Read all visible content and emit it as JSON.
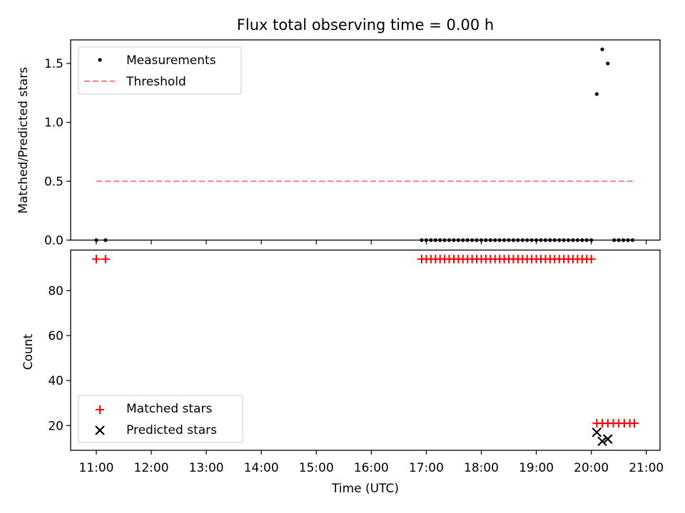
{
  "chart_data": [
    {
      "type": "scatter",
      "title": "Flux total observing time = 0.00 h",
      "xlabel": "",
      "ylabel": "Matched/Predicted stars",
      "xlim": [
        "10:32",
        "21:15"
      ],
      "ylim": [
        0,
        1.7
      ],
      "yticks": [
        0.0,
        0.5,
        1.0,
        1.5
      ],
      "ytick_labels": [
        "0.0",
        "0.5",
        "1.0",
        "1.5"
      ],
      "legend_position": "upper-left",
      "series": [
        {
          "name": "Measurements",
          "style": "dot",
          "color": "#000000",
          "points": [
            [
              "11:00",
              0
            ],
            [
              "11:10",
              0
            ],
            [
              "16:55",
              0
            ],
            [
              "17:00",
              0
            ],
            [
              "17:05",
              0
            ],
            [
              "17:10",
              0
            ],
            [
              "17:15",
              0
            ],
            [
              "17:20",
              0
            ],
            [
              "17:25",
              0
            ],
            [
              "17:30",
              0
            ],
            [
              "17:35",
              0
            ],
            [
              "17:40",
              0
            ],
            [
              "17:45",
              0
            ],
            [
              "17:50",
              0
            ],
            [
              "17:55",
              0
            ],
            [
              "18:00",
              0
            ],
            [
              "18:05",
              0
            ],
            [
              "18:10",
              0
            ],
            [
              "18:15",
              0
            ],
            [
              "18:20",
              0
            ],
            [
              "18:25",
              0
            ],
            [
              "18:30",
              0
            ],
            [
              "18:35",
              0
            ],
            [
              "18:40",
              0
            ],
            [
              "18:45",
              0
            ],
            [
              "18:50",
              0
            ],
            [
              "18:55",
              0
            ],
            [
              "19:00",
              0
            ],
            [
              "19:05",
              0
            ],
            [
              "19:10",
              0
            ],
            [
              "19:15",
              0
            ],
            [
              "19:20",
              0
            ],
            [
              "19:25",
              0
            ],
            [
              "19:30",
              0
            ],
            [
              "19:35",
              0
            ],
            [
              "19:40",
              0
            ],
            [
              "19:45",
              0
            ],
            [
              "19:50",
              0
            ],
            [
              "19:55",
              0
            ],
            [
              "20:00",
              0
            ],
            [
              "20:06",
              1.24
            ],
            [
              "20:12",
              1.62
            ],
            [
              "20:18",
              1.5
            ],
            [
              "20:25",
              0
            ],
            [
              "20:30",
              0
            ],
            [
              "20:35",
              0
            ],
            [
              "20:40",
              0
            ],
            [
              "20:45",
              0
            ]
          ]
        },
        {
          "name": "Threshold",
          "style": "dashed-line",
          "color": "#ff7f7f",
          "points": [
            [
              "11:00",
              0.5
            ],
            [
              "20:45",
              0.5
            ]
          ]
        }
      ]
    },
    {
      "type": "scatter",
      "title": "",
      "xlabel": "Time (UTC)",
      "ylabel": "Count",
      "xlim": [
        "10:32",
        "21:15"
      ],
      "ylim": [
        9,
        98
      ],
      "xticks": [
        "11:00",
        "12:00",
        "13:00",
        "14:00",
        "15:00",
        "16:00",
        "17:00",
        "18:00",
        "19:00",
        "20:00",
        "21:00"
      ],
      "yticks": [
        20,
        40,
        60,
        80
      ],
      "ytick_labels": [
        "20",
        "40",
        "60",
        "80"
      ],
      "legend_position": "lower-left",
      "series": [
        {
          "name": "Matched stars",
          "style": "plus",
          "color": "#ff0000",
          "points": [
            [
              "11:00",
              94
            ],
            [
              "11:10",
              94
            ],
            [
              "16:55",
              94
            ],
            [
              "17:00",
              94
            ],
            [
              "17:05",
              94
            ],
            [
              "17:10",
              94
            ],
            [
              "17:15",
              94
            ],
            [
              "17:20",
              94
            ],
            [
              "17:25",
              94
            ],
            [
              "17:30",
              94
            ],
            [
              "17:35",
              94
            ],
            [
              "17:40",
              94
            ],
            [
              "17:45",
              94
            ],
            [
              "17:50",
              94
            ],
            [
              "17:55",
              94
            ],
            [
              "18:00",
              94
            ],
            [
              "18:05",
              94
            ],
            [
              "18:10",
              94
            ],
            [
              "18:15",
              94
            ],
            [
              "18:20",
              94
            ],
            [
              "18:25",
              94
            ],
            [
              "18:30",
              94
            ],
            [
              "18:35",
              94
            ],
            [
              "18:40",
              94
            ],
            [
              "18:45",
              94
            ],
            [
              "18:50",
              94
            ],
            [
              "18:55",
              94
            ],
            [
              "19:00",
              94
            ],
            [
              "19:05",
              94
            ],
            [
              "19:10",
              94
            ],
            [
              "19:15",
              94
            ],
            [
              "19:20",
              94
            ],
            [
              "19:25",
              94
            ],
            [
              "19:30",
              94
            ],
            [
              "19:35",
              94
            ],
            [
              "19:40",
              94
            ],
            [
              "19:45",
              94
            ],
            [
              "19:50",
              94
            ],
            [
              "19:55",
              94
            ],
            [
              "20:00",
              94
            ],
            [
              "20:06",
              21
            ],
            [
              "20:12",
              21
            ],
            [
              "20:18",
              21
            ],
            [
              "20:24",
              21
            ],
            [
              "20:30",
              21
            ],
            [
              "20:36",
              21
            ],
            [
              "20:42",
              21
            ],
            [
              "20:47",
              21
            ]
          ]
        },
        {
          "name": "Predicted stars",
          "style": "x",
          "color": "#000000",
          "points": [
            [
              "20:06",
              17
            ],
            [
              "20:12",
              13
            ],
            [
              "20:18",
              14
            ]
          ]
        }
      ]
    }
  ]
}
